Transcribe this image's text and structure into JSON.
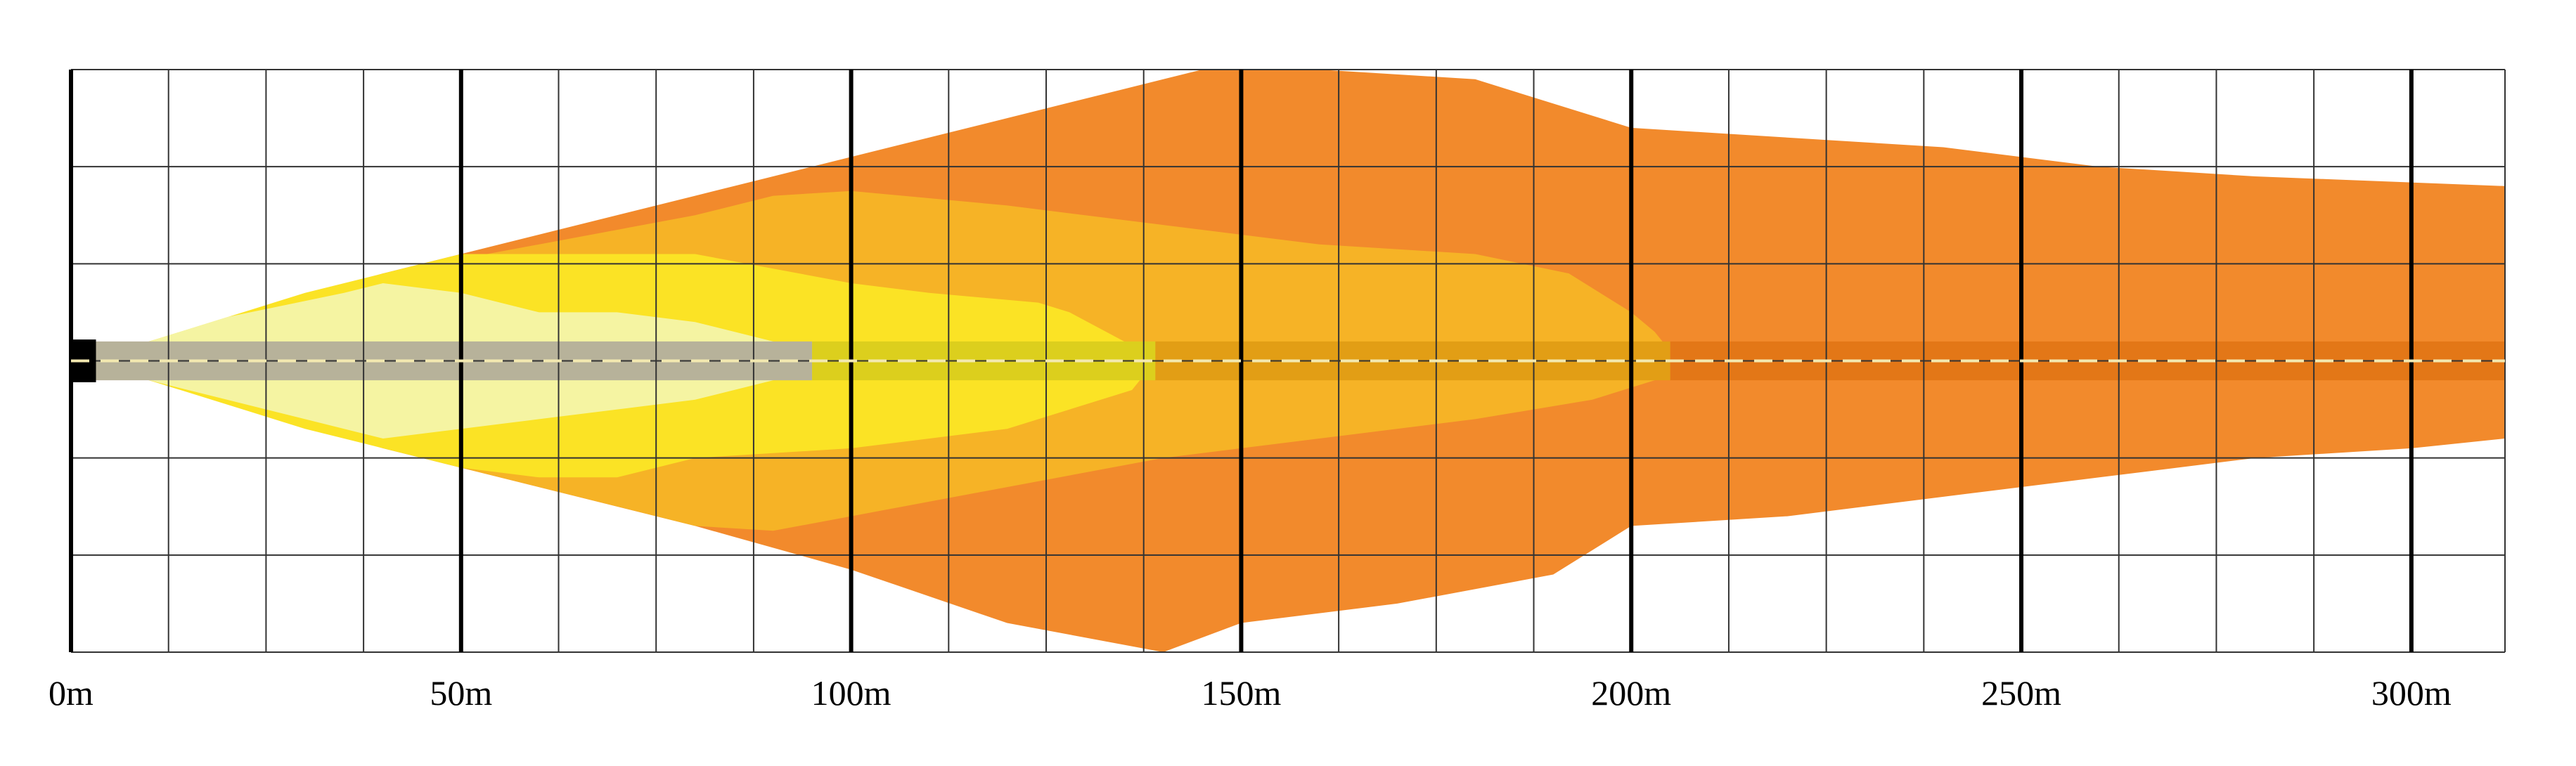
{
  "chart_data": {
    "type": "area",
    "title": "",
    "xlabel": "",
    "ylabel": "",
    "x_unit": "m",
    "xlim": [
      0,
      312
    ],
    "ylim": [
      -30,
      30
    ],
    "x_ticks": [
      {
        "value": 0,
        "label": "0m"
      },
      {
        "value": 50,
        "label": "50m"
      },
      {
        "value": 100,
        "label": "100m"
      },
      {
        "value": 150,
        "label": "150m"
      },
      {
        "value": 200,
        "label": "200m"
      },
      {
        "value": 250,
        "label": "250m"
      },
      {
        "value": 300,
        "label": "300m"
      }
    ],
    "x_minor_step": 12.5,
    "y_grid_step": 10,
    "grid": true,
    "legend": "none",
    "centerline_color": "#f3e9b0",
    "beam_color": "#000000",
    "series": [
      {
        "color": "#f28a2c",
        "upper": [
          [
            3.2,
            0
          ],
          [
            10,
            2
          ],
          [
            40,
            9
          ],
          [
            80,
            17
          ],
          [
            120,
            25
          ],
          [
            145,
            30
          ],
          [
            160,
            30
          ],
          [
            180,
            29
          ],
          [
            200,
            24
          ],
          [
            220,
            23
          ],
          [
            240,
            22
          ],
          [
            260,
            20
          ],
          [
            280,
            19
          ],
          [
            312,
            18
          ]
        ],
        "lower": [
          [
            3.2,
            0
          ],
          [
            10,
            -2
          ],
          [
            40,
            -9
          ],
          [
            80,
            -17
          ],
          [
            100,
            -21.5
          ],
          [
            120,
            -27
          ],
          [
            140,
            -30
          ],
          [
            150,
            -27
          ],
          [
            170,
            -25
          ],
          [
            190,
            -22
          ],
          [
            200,
            -17
          ],
          [
            220,
            -16
          ],
          [
            240,
            -14
          ],
          [
            260,
            -12
          ],
          [
            280,
            -10
          ],
          [
            300,
            -9
          ],
          [
            312,
            -8
          ]
        ]
      },
      {
        "color": "#f6b326",
        "upper": [
          [
            3.2,
            0
          ],
          [
            10,
            2
          ],
          [
            40,
            9
          ],
          [
            60,
            12
          ],
          [
            80,
            15
          ],
          [
            90,
            17
          ],
          [
            100,
            17.5
          ],
          [
            120,
            16
          ],
          [
            140,
            14
          ],
          [
            160,
            12
          ],
          [
            180,
            11
          ],
          [
            192,
            9
          ],
          [
            200,
            5
          ],
          [
            203,
            3
          ],
          [
            204,
            2
          ],
          [
            205,
            0
          ]
        ],
        "lower": [
          [
            3.2,
            0
          ],
          [
            10,
            -2
          ],
          [
            40,
            -9
          ],
          [
            60,
            -13
          ],
          [
            80,
            -17
          ],
          [
            90,
            -17.5
          ],
          [
            100,
            -16
          ],
          [
            120,
            -13
          ],
          [
            140,
            -10
          ],
          [
            160,
            -8
          ],
          [
            180,
            -6
          ],
          [
            195,
            -4
          ],
          [
            203,
            -2
          ],
          [
            205,
            0
          ]
        ]
      },
      {
        "color": "#fbe325",
        "upper": [
          [
            3.2,
            0
          ],
          [
            10,
            2
          ],
          [
            30,
            7
          ],
          [
            50,
            11
          ],
          [
            60,
            11
          ],
          [
            80,
            11
          ],
          [
            100,
            8
          ],
          [
            110,
            7
          ],
          [
            124,
            6
          ],
          [
            128,
            5
          ],
          [
            135,
            2
          ],
          [
            138,
            1
          ],
          [
            139,
            0
          ]
        ],
        "lower": [
          [
            3.2,
            0
          ],
          [
            10,
            -2
          ],
          [
            30,
            -7
          ],
          [
            50,
            -11
          ],
          [
            60,
            -12
          ],
          [
            70,
            -12
          ],
          [
            80,
            -10
          ],
          [
            100,
            -9
          ],
          [
            120,
            -7
          ],
          [
            136,
            -3
          ],
          [
            139,
            0
          ]
        ]
      },
      {
        "color": "#f5f4a2",
        "upper": [
          [
            3.2,
            0
          ],
          [
            10,
            2
          ],
          [
            20,
            4.5
          ],
          [
            35,
            7
          ],
          [
            40,
            8
          ],
          [
            50,
            7
          ],
          [
            60,
            5
          ],
          [
            70,
            5
          ],
          [
            80,
            4
          ],
          [
            90,
            2
          ],
          [
            95,
            0
          ]
        ],
        "lower": [
          [
            3.2,
            0
          ],
          [
            10,
            -2
          ],
          [
            20,
            -4
          ],
          [
            30,
            -6
          ],
          [
            40,
            -8
          ],
          [
            50,
            -7
          ],
          [
            60,
            -6
          ],
          [
            70,
            -5
          ],
          [
            80,
            -4
          ],
          [
            90,
            -2
          ],
          [
            95,
            0
          ]
        ]
      }
    ],
    "core_band": [
      {
        "color": "#b7b29a",
        "x": [
          3.2,
          95
        ]
      },
      {
        "color": "#dccf1d",
        "x": [
          95,
          139
        ]
      },
      {
        "color": "#e29e15",
        "x": [
          139,
          205
        ]
      },
      {
        "color": "#e37717",
        "x": [
          205,
          312
        ]
      }
    ],
    "core_band_halfwidth": 2
  }
}
